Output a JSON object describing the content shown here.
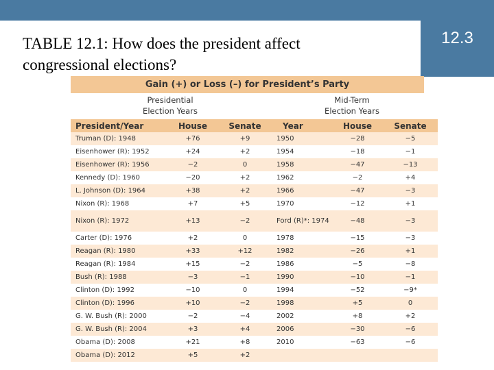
{
  "slide": {
    "title_line1": "TABLE 12.1: How does the president affect",
    "title_line2": "congressional elections?",
    "section_number": "12.3",
    "accent_color": "#4a7aa1"
  },
  "table": {
    "caption": "Gain (+) or Loss (–) for President’s Party",
    "group_presidential": [
      "Presidential",
      "Election Years"
    ],
    "group_midterm": [
      "Mid-Term",
      "Election Years"
    ],
    "columns": [
      "President/Year",
      "House",
      "Senate",
      "Year",
      "House",
      "Senate"
    ],
    "header_color": "#f3c795",
    "stripe_color": "#fde9d5",
    "rows": [
      [
        "Truman (D): 1948",
        "+76",
        "+9",
        "1950",
        "−28",
        "−5"
      ],
      [
        "Eisenhower (R): 1952",
        "+24",
        "+2",
        "1954",
        "−18",
        "−1"
      ],
      [
        "Eisenhower (R): 1956",
        "−2",
        "0",
        "1958",
        "−47",
        "−13"
      ],
      [
        "Kennedy (D): 1960",
        "−20",
        "+2",
        "1962",
        "−2",
        "+4"
      ],
      [
        "L. Johnson (D): 1964",
        "+38",
        "+2",
        "1966",
        "−47",
        "−3"
      ],
      [
        "Nixon (R): 1968",
        "+7",
        "+5",
        "1970",
        "−12",
        "+1"
      ],
      [
        "Nixon (R): 1972",
        "+13",
        "−2",
        "Ford (R)*: 1974",
        "−48",
        "−3"
      ],
      [
        "Carter (D): 1976",
        "+2",
        "0",
        "1978",
        "−15",
        "−3"
      ],
      [
        "Reagan (R): 1980",
        "+33",
        "+12",
        "1982",
        "−26",
        "+1"
      ],
      [
        "Reagan (R): 1984",
        "+15",
        "−2",
        "1986",
        "−5",
        "−8"
      ],
      [
        "Bush (R): 1988",
        "−3",
        "−1",
        "1990",
        "−10",
        "−1"
      ],
      [
        "Clinton (D): 1992",
        "−10",
        "0",
        "1994",
        "−52",
        "−9*"
      ],
      [
        "Clinton (D): 1996",
        "+10",
        "−2",
        "1998",
        "+5",
        "0"
      ],
      [
        "G. W. Bush (R): 2000",
        "−2",
        "−4",
        "2002",
        "+8",
        "+2"
      ],
      [
        "G. W. Bush (R): 2004",
        "+3",
        "+4",
        "2006",
        "−30",
        "−6"
      ],
      [
        "Obama (D): 2008",
        "+21",
        "+8",
        "2010",
        "−63",
        "−6"
      ],
      [
        "Obama (D): 2012",
        "+5",
        "+2",
        "",
        "",
        ""
      ]
    ]
  }
}
